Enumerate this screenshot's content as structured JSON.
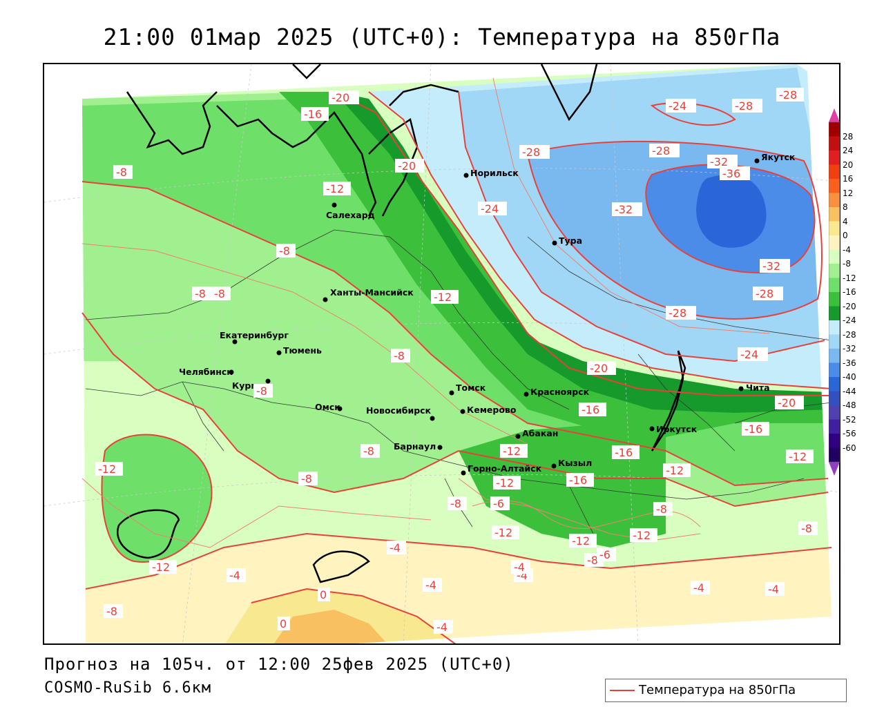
{
  "title": "21:00 01мар 2025 (UTC+0): Температура на 850гПа",
  "forecast_line": "Прогноз на 105ч. от 12:00 25фев 2025 (UTC+0)",
  "model_line": "COSMO-RuSib 6.6км",
  "legend_label": "Температура на 850гПа",
  "colorbar": {
    "labels": [
      "28",
      "24",
      "20",
      "16",
      "12",
      "8",
      "4",
      "0",
      "-4",
      "-8",
      "-12",
      "-16",
      "-20",
      "-24",
      "-28",
      "-32",
      "-36",
      "-40",
      "-44",
      "-48",
      "-52",
      "-56",
      "-60"
    ],
    "colors": [
      "#a00000",
      "#c01010",
      "#e02020",
      "#f04010",
      "#f86020",
      "#f89040",
      "#f8c060",
      "#f8e890",
      "#fff4c0",
      "#d8ffc0",
      "#a0f090",
      "#6ee06a",
      "#3cc03c",
      "#169a2c",
      "#c4ecfa",
      "#a0d6f6",
      "#7ab8f0",
      "#4a8ce8",
      "#2a66d8",
      "#3450c0",
      "#5040b0",
      "#4020a0",
      "#300080",
      "#200060"
    ],
    "top_arrow_color": "#e040a0",
    "bottom_arrow_color": "#9040c0"
  },
  "cities": [
    {
      "name": "Салехард"
    },
    {
      "name": "Норильск"
    },
    {
      "name": "Тура"
    },
    {
      "name": "Якутск"
    },
    {
      "name": "Ханты-Мансийск"
    },
    {
      "name": "Екатеринбург"
    },
    {
      "name": "Тюмень"
    },
    {
      "name": "Челябинск"
    },
    {
      "name": "Курган"
    },
    {
      "name": "Омск"
    },
    {
      "name": "Новосибирск"
    },
    {
      "name": "Томск"
    },
    {
      "name": "Кемерово"
    },
    {
      "name": "Красноярск"
    },
    {
      "name": "Абакан"
    },
    {
      "name": "Барнаул"
    },
    {
      "name": "Горно-Алтайск"
    },
    {
      "name": "Кызыл"
    },
    {
      "name": "Иркутск"
    },
    {
      "name": "Чита"
    }
  ],
  "contour_labels": [
    "-20",
    "-16",
    "-28",
    "-24",
    "-28",
    "-28",
    "-8",
    "-20",
    "-12",
    "-32",
    "-36",
    "-24",
    "-28",
    "-32",
    "-8",
    "-32",
    "-8",
    "-8",
    "-28",
    "-12",
    "-28",
    "-8",
    "-24",
    "-20",
    "-8",
    "-16",
    "-20",
    "-16",
    "-8",
    "-16",
    "-12",
    "-12",
    "-12",
    "-12",
    "-8",
    "-16",
    "-8",
    "-12",
    "-12",
    "-12",
    "-8",
    "-8",
    "-4",
    "-12",
    "-4",
    "-4",
    "-4",
    "-4",
    "-4",
    "-4",
    "0",
    "0",
    "-8",
    "-4",
    "-6",
    "-8",
    "-6",
    "-12"
  ]
}
